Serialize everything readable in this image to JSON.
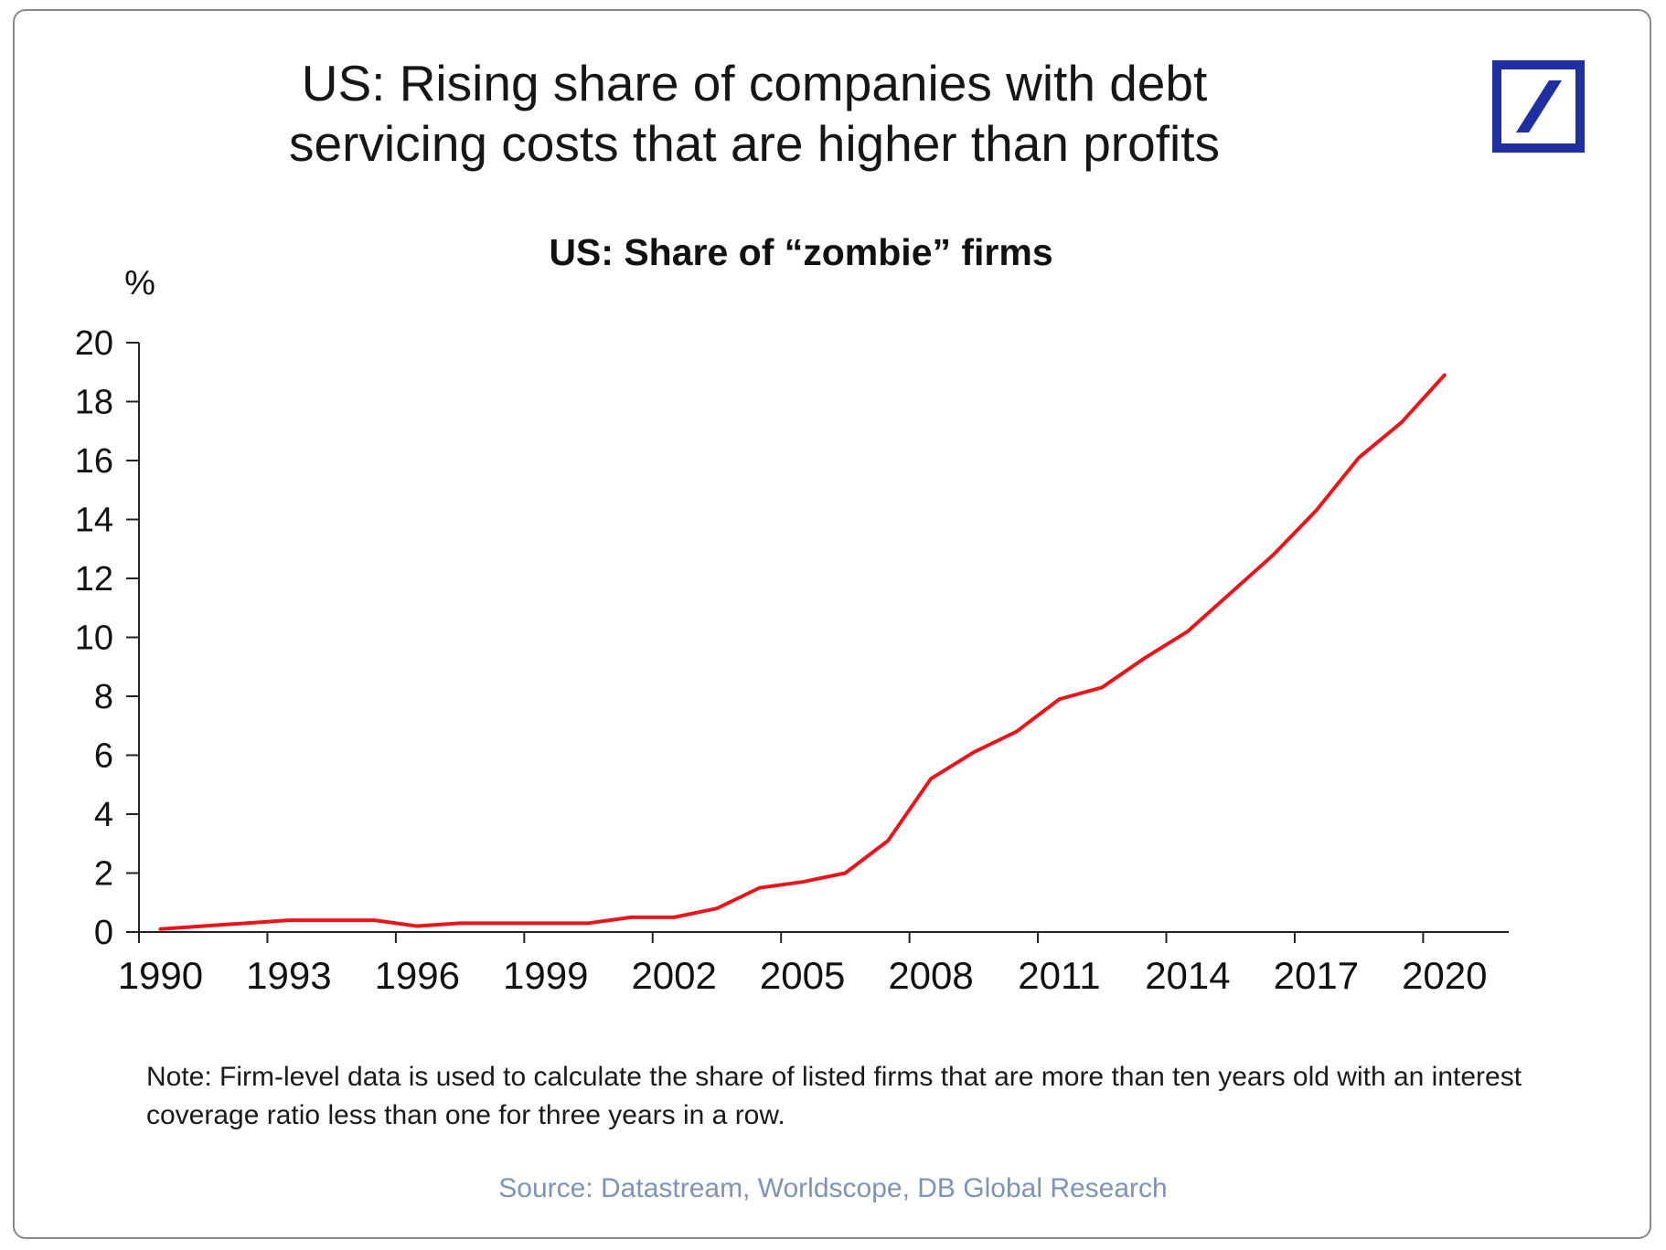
{
  "headline": {
    "line1": "US: Rising share of companies with debt",
    "line2": "servicing costs that are higher than profits"
  },
  "logo": {
    "icon": "deutsche-bank-logo-icon",
    "colors": {
      "frame": "#1f2ea0",
      "slash": "#1f2ea0",
      "background": "#ffffff"
    }
  },
  "chart_data": {
    "type": "line",
    "title": "US: Share of “zombie” firms",
    "ylabel": "%",
    "xlabel": "",
    "ylim": [
      0,
      20
    ],
    "y_ticks": [
      0,
      2,
      4,
      6,
      8,
      10,
      12,
      14,
      16,
      18,
      20
    ],
    "x_tick_labels": [
      "1990",
      "1993",
      "1996",
      "1999",
      "2002",
      "2005",
      "2008",
      "2011",
      "2014",
      "2017",
      "2020"
    ],
    "xlim": [
      1989.5,
      2021.5
    ],
    "grid": false,
    "legend": "none",
    "series": [
      {
        "color": "#e8161b",
        "x": [
          1990,
          1991,
          1992,
          1993,
          1994,
          1995,
          1996,
          1997,
          1998,
          1999,
          2000,
          2001,
          2002,
          2003,
          2004,
          2005,
          2006,
          2007,
          2008,
          2009,
          2010,
          2011,
          2012,
          2013,
          2014,
          2015,
          2016,
          2017,
          2018,
          2019,
          2020
        ],
        "y": [
          0.1,
          0.2,
          0.3,
          0.4,
          0.4,
          0.4,
          0.2,
          0.3,
          0.3,
          0.3,
          0.3,
          0.5,
          0.5,
          0.8,
          1.5,
          1.7,
          2.0,
          3.1,
          5.2,
          6.1,
          6.8,
          7.9,
          8.3,
          9.3,
          10.2,
          11.5,
          12.8,
          14.3,
          16.1,
          17.3,
          18.9
        ]
      }
    ]
  },
  "note": "Note: Firm-level data is used to calculate the share of listed firms that are more than ten years old with an interest coverage ratio less than one for three years in a row.",
  "source": "Source: Datastream, Worldscope, DB Global Research"
}
